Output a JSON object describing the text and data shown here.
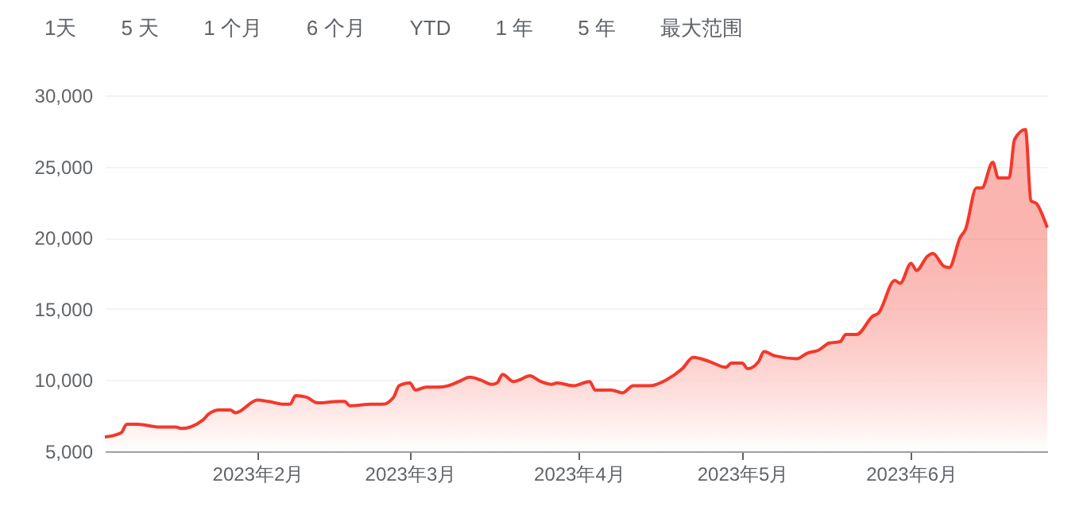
{
  "chart_data": {
    "type": "area",
    "annotations": [
      "1天",
      "5 天",
      "1 个月",
      "6 个月",
      "YTD",
      "1 年",
      "5 年",
      "最大范围"
    ],
    "x": [
      "2023-01-04",
      "2023-01-07",
      "2023-01-08",
      "2023-01-10",
      "2023-01-14",
      "2023-01-17",
      "2023-01-18",
      "2023-01-22",
      "2023-01-23",
      "2023-01-25",
      "2023-01-27",
      "2023-01-28",
      "2023-02-01",
      "2023-02-03",
      "2023-02-06",
      "2023-02-07",
      "2023-02-08",
      "2023-02-10",
      "2023-02-12",
      "2023-02-16",
      "2023-02-17",
      "2023-02-18",
      "2023-02-22",
      "2023-02-24",
      "2023-02-26",
      "2023-02-27",
      "2023-03-01",
      "2023-03-02",
      "2023-03-04",
      "2023-03-06",
      "2023-03-08",
      "2023-03-10",
      "2023-03-12",
      "2023-03-14",
      "2023-03-16",
      "2023-03-17",
      "2023-03-18",
      "2023-03-20",
      "2023-03-21",
      "2023-03-23",
      "2023-03-25",
      "2023-03-27",
      "2023-03-28",
      "2023-03-31",
      "2023-04-03",
      "2023-04-04",
      "2023-04-07",
      "2023-04-09",
      "2023-04-11",
      "2023-04-14",
      "2023-04-17",
      "2023-04-20",
      "2023-04-22",
      "2023-04-25",
      "2023-04-28",
      "2023-04-29",
      "2023-05-01",
      "2023-05-02",
      "2023-05-04",
      "2023-05-05",
      "2023-05-07",
      "2023-05-11",
      "2023-05-13",
      "2023-05-15",
      "2023-05-17",
      "2023-05-19",
      "2023-05-20",
      "2023-05-22",
      "2023-05-25",
      "2023-05-26",
      "2023-05-29",
      "2023-05-30",
      "2023-06-01",
      "2023-06-02",
      "2023-06-04",
      "2023-06-05",
      "2023-06-07",
      "2023-06-08",
      "2023-06-10",
      "2023-06-11",
      "2023-06-13",
      "2023-06-14",
      "2023-06-16",
      "2023-06-17",
      "2023-06-19",
      "2023-06-20",
      "2023-06-22",
      "2023-06-23",
      "2023-06-24",
      "2023-06-26"
    ],
    "series": [
      {
        "color": "#f4382b",
        "values": [
          6000,
          6300,
          6900,
          6900,
          6700,
          6700,
          6600,
          7200,
          7600,
          7900,
          7900,
          7700,
          8600,
          8500,
          8300,
          8300,
          8900,
          8800,
          8400,
          8500,
          8500,
          8200,
          8300,
          8300,
          8800,
          9600,
          9800,
          9300,
          9500,
          9500,
          9600,
          9900,
          10200,
          10000,
          9700,
          9800,
          10400,
          9900,
          10000,
          10300,
          9900,
          9700,
          9800,
          9600,
          9900,
          9300,
          9300,
          9100,
          9600,
          9600,
          10000,
          10800,
          11600,
          11300,
          10900,
          11200,
          11200,
          10800,
          11300,
          12000,
          11700,
          11500,
          11900,
          12100,
          12600,
          12700,
          13200,
          13200,
          14500,
          14700,
          17000,
          16800,
          18200,
          17700,
          18700,
          18900,
          18000,
          17900,
          20000,
          20600,
          23500,
          23500,
          25300,
          24200,
          24200,
          26900,
          27600,
          22600,
          22400,
          20700
        ]
      }
    ],
    "xlim": [
      "2023-01-04",
      "2023-06-26"
    ],
    "xticks": [
      {
        "value": "2023-02-01",
        "label": "2023年2月"
      },
      {
        "value": "2023-03-01",
        "label": "2023年3月"
      },
      {
        "value": "2023-04-01",
        "label": "2023年4月"
      },
      {
        "value": "2023-05-01",
        "label": "2023年5月"
      },
      {
        "value": "2023-06-01",
        "label": "2023年6月"
      }
    ],
    "ylim": [
      5000,
      30000
    ],
    "yticks": [
      {
        "value": 5000,
        "label": "5,000"
      },
      {
        "value": 10000,
        "label": "10,000"
      },
      {
        "value": 15000,
        "label": "15,000"
      },
      {
        "value": 20000,
        "label": "20,000"
      },
      {
        "value": 25000,
        "label": "25,000"
      },
      {
        "value": 30000,
        "label": "30,000"
      }
    ],
    "grid": "y"
  }
}
